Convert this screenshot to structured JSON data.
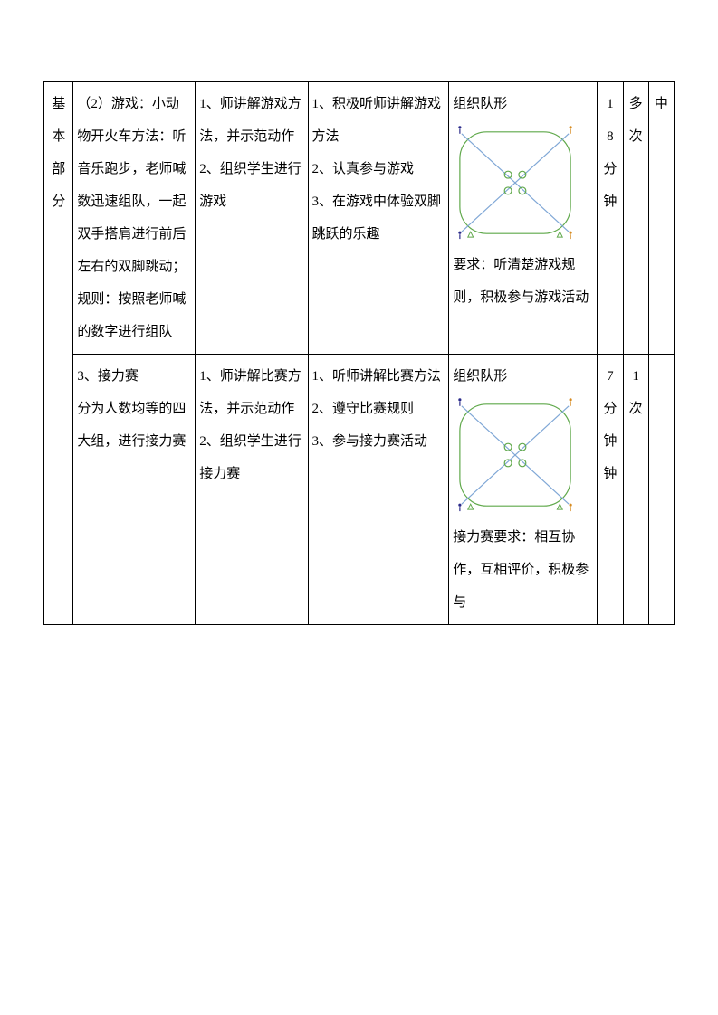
{
  "section_label": "基本部分",
  "rows": [
    {
      "content": "（2）游戏：小动物开火车方法：听音乐跑步，老师喊数迅速组队，一起双手搭肩进行前后左右的双脚跳动；规则：按照老师喊的数字进行组队",
      "teacher": "1、师讲解游戏方法，并示范动作\n2、组织学生进行游戏",
      "student": "1、积极听师讲解游戏方法\n2、认真参与游戏\n3、在游戏中体验双脚跳跃的乐趣",
      "org_title": "组织队形",
      "org_req": "要求：听清楚游戏规则，积极参与游戏活动",
      "time": "18分钟",
      "freq": "多次",
      "intensity": "中"
    },
    {
      "content": "3、接力赛\n分为人数均等的四大组，进行接力赛",
      "teacher": "1、师讲解比赛方法，并示范动作\n2、组织学生进行接力赛",
      "student": "1、听师讲解比赛方法\n2、遵守比赛规则\n3、参与接力赛活动",
      "org_title": "组织队形",
      "org_req": "接力赛要求：相互协作，互相评价，积极参与",
      "time": "7分钟钟",
      "freq": "1次",
      "intensity": ""
    }
  ],
  "diagram": {
    "outer_stroke": "#5fa84a",
    "inner_circle_stroke": "#5fa84a",
    "diag_stroke": "#7fa7d6",
    "person_fill": "#2a2a8a",
    "person_orange": "#d68a1f",
    "triangle_stroke": "#5fa84a",
    "stroke_width": 1.2
  }
}
